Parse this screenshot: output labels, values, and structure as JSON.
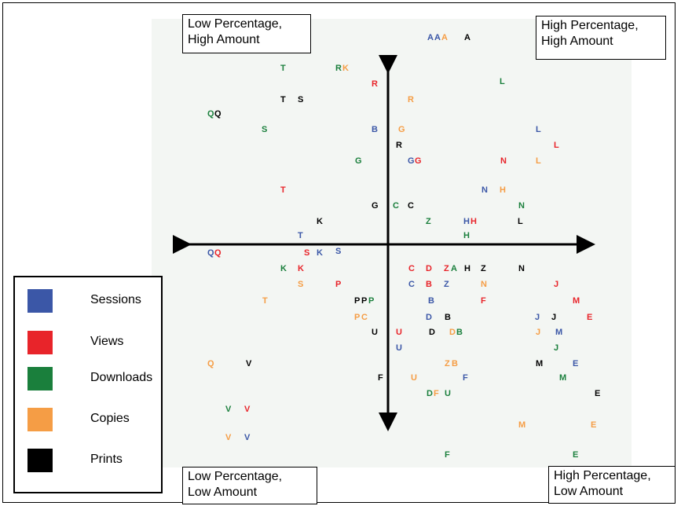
{
  "colors": {
    "Sessions": "#3b57a7",
    "Views": "#e8242a",
    "Downloads": "#1a7f3c",
    "Copies": "#f59d45",
    "Prints": "#000000"
  },
  "corners": {
    "top_left": "Low Percentage,\nHigh Amount",
    "top_right": "High Percentage,\nHigh Amount",
    "bottom_left": "Low Percentage,\nLow Amount",
    "bottom_right": "High Percentage,\nLow Amount"
  },
  "legend": [
    {
      "label": "Sessions",
      "color": "#3b57a7"
    },
    {
      "label": "Views",
      "color": "#e8242a"
    },
    {
      "label": "Downloads",
      "color": "#1a7f3c"
    },
    {
      "label": "Copies",
      "color": "#f59d45"
    },
    {
      "label": "Prints",
      "color": "#000000"
    }
  ],
  "marks": [
    {
      "t": "A",
      "s": "Sessions"
    },
    {
      "t": "A",
      "s": "Sessions"
    },
    {
      "t": "A",
      "s": "Copies"
    },
    {
      "t": "A",
      "s": "Prints"
    },
    {
      "t": "T",
      "s": "Downloads"
    },
    {
      "t": "R",
      "s": "Downloads"
    },
    {
      "t": "K",
      "s": "Copies"
    },
    {
      "t": "R",
      "s": "Views"
    },
    {
      "t": "L",
      "s": "Downloads"
    },
    {
      "t": "T",
      "s": "Prints"
    },
    {
      "t": "S",
      "s": "Prints"
    },
    {
      "t": "R",
      "s": "Copies"
    },
    {
      "t": "Q",
      "s": "Downloads"
    },
    {
      "t": "Q",
      "s": "Prints"
    },
    {
      "t": "S",
      "s": "Downloads"
    },
    {
      "t": "B",
      "s": "Sessions"
    },
    {
      "t": "G",
      "s": "Copies"
    },
    {
      "t": "L",
      "s": "Sessions"
    },
    {
      "t": "R",
      "s": "Prints"
    },
    {
      "t": "L",
      "s": "Views"
    },
    {
      "t": "G",
      "s": "Downloads"
    },
    {
      "t": "G",
      "s": "Sessions"
    },
    {
      "t": "G",
      "s": "Views"
    },
    {
      "t": "N",
      "s": "Views"
    },
    {
      "t": "L",
      "s": "Copies"
    },
    {
      "t": "T",
      "s": "Views"
    },
    {
      "t": "N",
      "s": "Sessions"
    },
    {
      "t": "H",
      "s": "Copies"
    },
    {
      "t": "G",
      "s": "Prints"
    },
    {
      "t": "C",
      "s": "Downloads"
    },
    {
      "t": "C",
      "s": "Prints"
    },
    {
      "t": "N",
      "s": "Downloads"
    },
    {
      "t": "K",
      "s": "Prints"
    },
    {
      "t": "Z",
      "s": "Downloads"
    },
    {
      "t": "H",
      "s": "Sessions"
    },
    {
      "t": "H",
      "s": "Views"
    },
    {
      "t": "L",
      "s": "Prints"
    },
    {
      "t": "T",
      "s": "Sessions"
    },
    {
      "t": "H",
      "s": "Downloads"
    },
    {
      "t": "Q",
      "s": "Sessions"
    },
    {
      "t": "Q",
      "s": "Views"
    },
    {
      "t": "S",
      "s": "Views"
    },
    {
      "t": "K",
      "s": "Sessions"
    },
    {
      "t": "S",
      "s": "Sessions"
    },
    {
      "t": "K",
      "s": "Downloads"
    },
    {
      "t": "K",
      "s": "Views"
    },
    {
      "t": "C",
      "s": "Views"
    },
    {
      "t": "D",
      "s": "Views"
    },
    {
      "t": "Z",
      "s": "Views"
    },
    {
      "t": "A",
      "s": "Downloads"
    },
    {
      "t": "H",
      "s": "Prints"
    },
    {
      "t": "Z",
      "s": "Prints"
    },
    {
      "t": "N",
      "s": "Prints"
    },
    {
      "t": "S",
      "s": "Copies"
    },
    {
      "t": "P",
      "s": "Views"
    },
    {
      "t": "C",
      "s": "Sessions"
    },
    {
      "t": "B",
      "s": "Views"
    },
    {
      "t": "Z",
      "s": "Sessions"
    },
    {
      "t": "N",
      "s": "Copies"
    },
    {
      "t": "J",
      "s": "Views"
    },
    {
      "t": "T",
      "s": "Copies"
    },
    {
      "t": "P",
      "s": "Prints"
    },
    {
      "t": "P",
      "s": "Prints"
    },
    {
      "t": "P",
      "s": "Downloads"
    },
    {
      "t": "B",
      "s": "Sessions"
    },
    {
      "t": "F",
      "s": "Views"
    },
    {
      "t": "M",
      "s": "Views"
    },
    {
      "t": "P",
      "s": "Copies"
    },
    {
      "t": "C",
      "s": "Copies"
    },
    {
      "t": "D",
      "s": "Sessions"
    },
    {
      "t": "B",
      "s": "Prints"
    },
    {
      "t": "J",
      "s": "Sessions"
    },
    {
      "t": "J",
      "s": "Prints"
    },
    {
      "t": "E",
      "s": "Views"
    },
    {
      "t": "U",
      "s": "Prints"
    },
    {
      "t": "U",
      "s": "Views"
    },
    {
      "t": "D",
      "s": "Prints"
    },
    {
      "t": "D",
      "s": "Copies"
    },
    {
      "t": "B",
      "s": "Downloads"
    },
    {
      "t": "J",
      "s": "Copies"
    },
    {
      "t": "M",
      "s": "Sessions"
    },
    {
      "t": "U",
      "s": "Sessions"
    },
    {
      "t": "J",
      "s": "Downloads"
    },
    {
      "t": "Q",
      "s": "Copies"
    },
    {
      "t": "V",
      "s": "Prints"
    },
    {
      "t": "Z",
      "s": "Copies"
    },
    {
      "t": "B",
      "s": "Copies"
    },
    {
      "t": "M",
      "s": "Prints"
    },
    {
      "t": "E",
      "s": "Sessions"
    },
    {
      "t": "F",
      "s": "Prints"
    },
    {
      "t": "U",
      "s": "Copies"
    },
    {
      "t": "F",
      "s": "Sessions"
    },
    {
      "t": "M",
      "s": "Downloads"
    },
    {
      "t": "D",
      "s": "Downloads"
    },
    {
      "t": "F",
      "s": "Copies"
    },
    {
      "t": "U",
      "s": "Downloads"
    },
    {
      "t": "E",
      "s": "Prints"
    },
    {
      "t": "V",
      "s": "Downloads"
    },
    {
      "t": "V",
      "s": "Views"
    },
    {
      "t": "M",
      "s": "Copies"
    },
    {
      "t": "E",
      "s": "Copies"
    },
    {
      "t": "V",
      "s": "Copies"
    },
    {
      "t": "V",
      "s": "Sessions"
    },
    {
      "t": "F",
      "s": "Downloads"
    },
    {
      "t": "E",
      "s": "Downloads"
    }
  ]
}
